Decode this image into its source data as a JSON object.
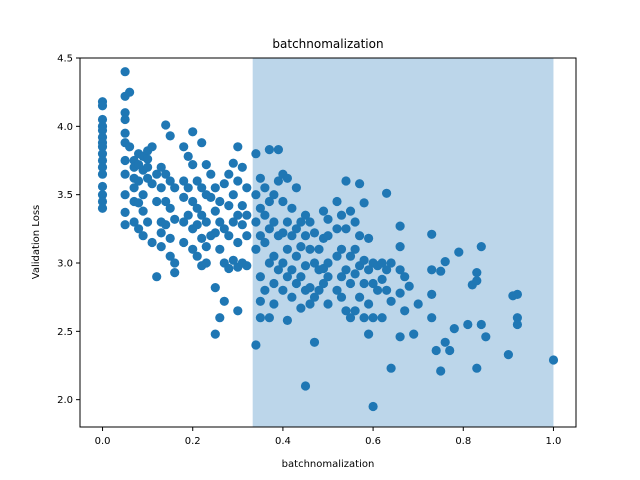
{
  "chart_data": {
    "type": "scatter",
    "title": "batchnomalization",
    "xlabel": "batchnomalization",
    "ylabel": "Validation Loss",
    "xlim": [
      -0.05,
      1.05
    ],
    "ylim": [
      1.8,
      4.5
    ],
    "xticks": [
      0.0,
      0.2,
      0.4,
      0.6,
      0.8,
      1.0
    ],
    "xtick_labels": [
      "0.0",
      "0.2",
      "0.4",
      "0.6",
      "0.8",
      "1.0"
    ],
    "yticks": [
      2.0,
      2.5,
      3.0,
      3.5,
      4.0,
      4.5
    ],
    "ytick_labels": [
      "2.0",
      "2.5",
      "3.0",
      "3.5",
      "4.0",
      "4.5"
    ],
    "highlight_span": {
      "x0": 0.333,
      "x1": 1.0,
      "color": "#bcd6ea"
    },
    "grid": false,
    "marker_color": "#1f77b4",
    "points": [
      [
        0.0,
        4.18
      ],
      [
        0.0,
        4.15
      ],
      [
        0.0,
        4.05
      ],
      [
        0.0,
        4.0
      ],
      [
        0.0,
        3.97
      ],
      [
        0.0,
        3.92
      ],
      [
        0.0,
        3.88
      ],
      [
        0.0,
        3.85
      ],
      [
        0.0,
        3.8
      ],
      [
        0.0,
        3.75
      ],
      [
        0.0,
        3.7
      ],
      [
        0.0,
        3.65
      ],
      [
        0.0,
        3.56
      ],
      [
        0.0,
        3.5
      ],
      [
        0.0,
        3.45
      ],
      [
        0.0,
        3.4
      ],
      [
        0.05,
        4.4
      ],
      [
        0.05,
        4.22
      ],
      [
        0.05,
        4.1
      ],
      [
        0.05,
        4.05
      ],
      [
        0.05,
        3.95
      ],
      [
        0.05,
        3.88
      ],
      [
        0.05,
        3.75
      ],
      [
        0.05,
        3.65
      ],
      [
        0.05,
        3.5
      ],
      [
        0.05,
        3.37
      ],
      [
        0.05,
        3.28
      ],
      [
        0.06,
        4.25
      ],
      [
        0.06,
        3.85
      ],
      [
        0.07,
        3.75
      ],
      [
        0.07,
        3.7
      ],
      [
        0.07,
        3.62
      ],
      [
        0.07,
        3.55
      ],
      [
        0.07,
        3.45
      ],
      [
        0.07,
        3.3
      ],
      [
        0.08,
        3.8
      ],
      [
        0.08,
        3.72
      ],
      [
        0.08,
        3.6
      ],
      [
        0.08,
        3.44
      ],
      [
        0.08,
        3.25
      ],
      [
        0.09,
        3.78
      ],
      [
        0.09,
        3.68
      ],
      [
        0.09,
        3.5
      ],
      [
        0.09,
        3.38
      ],
      [
        0.09,
        3.2
      ],
      [
        0.1,
        3.82
      ],
      [
        0.1,
        3.76
      ],
      [
        0.1,
        3.7
      ],
      [
        0.1,
        3.62
      ],
      [
        0.1,
        3.3
      ],
      [
        0.11,
        3.85
      ],
      [
        0.11,
        3.58
      ],
      [
        0.11,
        3.15
      ],
      [
        0.12,
        3.65
      ],
      [
        0.12,
        3.45
      ],
      [
        0.12,
        2.9
      ],
      [
        0.13,
        3.7
      ],
      [
        0.13,
        3.55
      ],
      [
        0.13,
        3.3
      ],
      [
        0.13,
        3.22
      ],
      [
        0.13,
        3.12
      ],
      [
        0.14,
        4.01
      ],
      [
        0.14,
        3.65
      ],
      [
        0.14,
        3.45
      ],
      [
        0.14,
        3.28
      ],
      [
        0.15,
        3.93
      ],
      [
        0.15,
        3.6
      ],
      [
        0.15,
        3.4
      ],
      [
        0.15,
        3.18
      ],
      [
        0.15,
        3.05
      ],
      [
        0.16,
        3.55
      ],
      [
        0.16,
        3.32
      ],
      [
        0.16,
        3.0
      ],
      [
        0.16,
        2.93
      ],
      [
        0.18,
        3.85
      ],
      [
        0.18,
        3.6
      ],
      [
        0.18,
        3.48
      ],
      [
        0.18,
        3.3
      ],
      [
        0.18,
        3.15
      ],
      [
        0.19,
        3.78
      ],
      [
        0.19,
        3.55
      ],
      [
        0.19,
        3.35
      ],
      [
        0.2,
        3.96
      ],
      [
        0.2,
        3.72
      ],
      [
        0.2,
        3.45
      ],
      [
        0.2,
        3.25
      ],
      [
        0.2,
        3.1
      ],
      [
        0.21,
        3.6
      ],
      [
        0.21,
        3.4
      ],
      [
        0.21,
        3.28
      ],
      [
        0.21,
        3.05
      ],
      [
        0.22,
        3.88
      ],
      [
        0.22,
        3.55
      ],
      [
        0.22,
        3.35
      ],
      [
        0.22,
        3.18
      ],
      [
        0.22,
        2.98
      ],
      [
        0.23,
        3.72
      ],
      [
        0.23,
        3.5
      ],
      [
        0.23,
        3.3
      ],
      [
        0.23,
        3.12
      ],
      [
        0.23,
        3.0
      ],
      [
        0.24,
        3.65
      ],
      [
        0.24,
        3.48
      ],
      [
        0.24,
        3.2
      ],
      [
        0.25,
        3.55
      ],
      [
        0.25,
        3.38
      ],
      [
        0.25,
        3.22
      ],
      [
        0.25,
        2.82
      ],
      [
        0.25,
        2.48
      ],
      [
        0.26,
        3.45
      ],
      [
        0.26,
        3.3
      ],
      [
        0.26,
        3.1
      ],
      [
        0.26,
        2.6
      ],
      [
        0.27,
        3.58
      ],
      [
        0.27,
        3.25
      ],
      [
        0.27,
        3.0
      ],
      [
        0.27,
        2.72
      ],
      [
        0.28,
        3.65
      ],
      [
        0.28,
        3.42
      ],
      [
        0.28,
        3.2
      ],
      [
        0.28,
        2.96
      ],
      [
        0.29,
        3.73
      ],
      [
        0.29,
        3.5
      ],
      [
        0.29,
        3.3
      ],
      [
        0.29,
        3.02
      ],
      [
        0.3,
        3.85
      ],
      [
        0.3,
        3.6
      ],
      [
        0.3,
        3.35
      ],
      [
        0.3,
        3.15
      ],
      [
        0.3,
        2.97
      ],
      [
        0.3,
        2.65
      ],
      [
        0.31,
        3.7
      ],
      [
        0.31,
        3.42
      ],
      [
        0.31,
        3.28
      ],
      [
        0.31,
        3.0
      ],
      [
        0.32,
        3.55
      ],
      [
        0.32,
        3.35
      ],
      [
        0.32,
        3.2
      ],
      [
        0.32,
        2.98
      ],
      [
        0.34,
        3.8
      ],
      [
        0.34,
        3.5
      ],
      [
        0.34,
        3.3
      ],
      [
        0.34,
        3.1
      ],
      [
        0.34,
        2.4
      ],
      [
        0.35,
        3.62
      ],
      [
        0.35,
        3.4
      ],
      [
        0.35,
        3.2
      ],
      [
        0.35,
        2.9
      ],
      [
        0.35,
        2.72
      ],
      [
        0.35,
        2.6
      ],
      [
        0.36,
        3.55
      ],
      [
        0.36,
        3.35
      ],
      [
        0.36,
        3.15
      ],
      [
        0.36,
        2.8
      ],
      [
        0.37,
        3.83
      ],
      [
        0.37,
        3.45
      ],
      [
        0.37,
        3.25
      ],
      [
        0.37,
        3.0
      ],
      [
        0.37,
        2.6
      ],
      [
        0.38,
        3.5
      ],
      [
        0.38,
        3.3
      ],
      [
        0.38,
        3.05
      ],
      [
        0.38,
        2.85
      ],
      [
        0.38,
        2.7
      ],
      [
        0.39,
        3.83
      ],
      [
        0.39,
        3.6
      ],
      [
        0.39,
        3.2
      ],
      [
        0.39,
        2.95
      ],
      [
        0.4,
        3.65
      ],
      [
        0.4,
        3.45
      ],
      [
        0.4,
        3.22
      ],
      [
        0.4,
        3.0
      ],
      [
        0.4,
        2.8
      ],
      [
        0.41,
        3.62
      ],
      [
        0.41,
        3.3
      ],
      [
        0.41,
        3.1
      ],
      [
        0.41,
        2.9
      ],
      [
        0.41,
        2.58
      ],
      [
        0.42,
        3.4
      ],
      [
        0.42,
        3.2
      ],
      [
        0.42,
        2.95
      ],
      [
        0.42,
        2.75
      ],
      [
        0.43,
        3.55
      ],
      [
        0.43,
        3.25
      ],
      [
        0.43,
        3.05
      ],
      [
        0.43,
        2.85
      ],
      [
        0.44,
        3.3
      ],
      [
        0.44,
        3.12
      ],
      [
        0.44,
        2.9
      ],
      [
        0.44,
        2.67
      ],
      [
        0.45,
        3.35
      ],
      [
        0.45,
        3.2
      ],
      [
        0.45,
        2.98
      ],
      [
        0.45,
        2.8
      ],
      [
        0.45,
        2.1
      ],
      [
        0.46,
        3.3
      ],
      [
        0.46,
        3.1
      ],
      [
        0.46,
        2.82
      ],
      [
        0.46,
        2.7
      ],
      [
        0.47,
        3.22
      ],
      [
        0.47,
        3.0
      ],
      [
        0.47,
        2.75
      ],
      [
        0.47,
        2.42
      ],
      [
        0.48,
        3.1
      ],
      [
        0.48,
        2.95
      ],
      [
        0.48,
        2.8
      ],
      [
        0.49,
        3.38
      ],
      [
        0.49,
        3.18
      ],
      [
        0.49,
        2.96
      ],
      [
        0.49,
        2.85
      ],
      [
        0.5,
        3.32
      ],
      [
        0.5,
        3.2
      ],
      [
        0.5,
        3.0
      ],
      [
        0.5,
        2.9
      ],
      [
        0.5,
        2.7
      ],
      [
        0.52,
        3.45
      ],
      [
        0.52,
        3.25
      ],
      [
        0.52,
        3.05
      ],
      [
        0.52,
        2.8
      ],
      [
        0.53,
        3.35
      ],
      [
        0.53,
        3.1
      ],
      [
        0.53,
        2.9
      ],
      [
        0.53,
        2.75
      ],
      [
        0.54,
        3.6
      ],
      [
        0.54,
        3.25
      ],
      [
        0.54,
        2.95
      ],
      [
        0.54,
        2.65
      ],
      [
        0.55,
        3.38
      ],
      [
        0.55,
        3.05
      ],
      [
        0.55,
        2.85
      ],
      [
        0.55,
        2.6
      ],
      [
        0.56,
        3.3
      ],
      [
        0.56,
        3.1
      ],
      [
        0.56,
        2.92
      ],
      [
        0.56,
        2.65
      ],
      [
        0.57,
        3.58
      ],
      [
        0.57,
        3.2
      ],
      [
        0.57,
        2.98
      ],
      [
        0.57,
        2.75
      ],
      [
        0.58,
        3.44
      ],
      [
        0.58,
        3.02
      ],
      [
        0.58,
        2.85
      ],
      [
        0.58,
        2.6
      ],
      [
        0.59,
        3.18
      ],
      [
        0.59,
        2.95
      ],
      [
        0.59,
        2.7
      ],
      [
        0.59,
        2.48
      ],
      [
        0.6,
        3.0
      ],
      [
        0.6,
        2.85
      ],
      [
        0.6,
        2.6
      ],
      [
        0.6,
        1.95
      ],
      [
        0.61,
        2.98
      ],
      [
        0.61,
        2.8
      ],
      [
        0.62,
        3.0
      ],
      [
        0.62,
        2.88
      ],
      [
        0.62,
        2.6
      ],
      [
        0.63,
        3.51
      ],
      [
        0.63,
        2.95
      ],
      [
        0.63,
        2.8
      ],
      [
        0.64,
        3.0
      ],
      [
        0.64,
        2.72
      ],
      [
        0.64,
        2.23
      ],
      [
        0.66,
        3.27
      ],
      [
        0.66,
        3.12
      ],
      [
        0.66,
        2.95
      ],
      [
        0.66,
        2.78
      ],
      [
        0.66,
        2.46
      ],
      [
        0.67,
        2.9
      ],
      [
        0.67,
        2.65
      ],
      [
        0.68,
        2.83
      ],
      [
        0.69,
        2.48
      ],
      [
        0.7,
        2.7
      ],
      [
        0.73,
        3.21
      ],
      [
        0.73,
        2.95
      ],
      [
        0.73,
        2.77
      ],
      [
        0.73,
        2.6
      ],
      [
        0.74,
        2.36
      ],
      [
        0.75,
        2.94
      ],
      [
        0.75,
        2.21
      ],
      [
        0.76,
        3.01
      ],
      [
        0.76,
        2.42
      ],
      [
        0.77,
        2.36
      ],
      [
        0.78,
        2.52
      ],
      [
        0.79,
        3.08
      ],
      [
        0.81,
        2.55
      ],
      [
        0.82,
        2.84
      ],
      [
        0.83,
        2.93
      ],
      [
        0.83,
        2.87
      ],
      [
        0.83,
        2.23
      ],
      [
        0.84,
        2.55
      ],
      [
        0.84,
        3.12
      ],
      [
        0.85,
        2.46
      ],
      [
        0.9,
        2.33
      ],
      [
        0.91,
        2.76
      ],
      [
        0.92,
        2.77
      ],
      [
        0.92,
        2.6
      ],
      [
        0.92,
        2.55
      ],
      [
        1.0,
        2.29
      ]
    ]
  }
}
